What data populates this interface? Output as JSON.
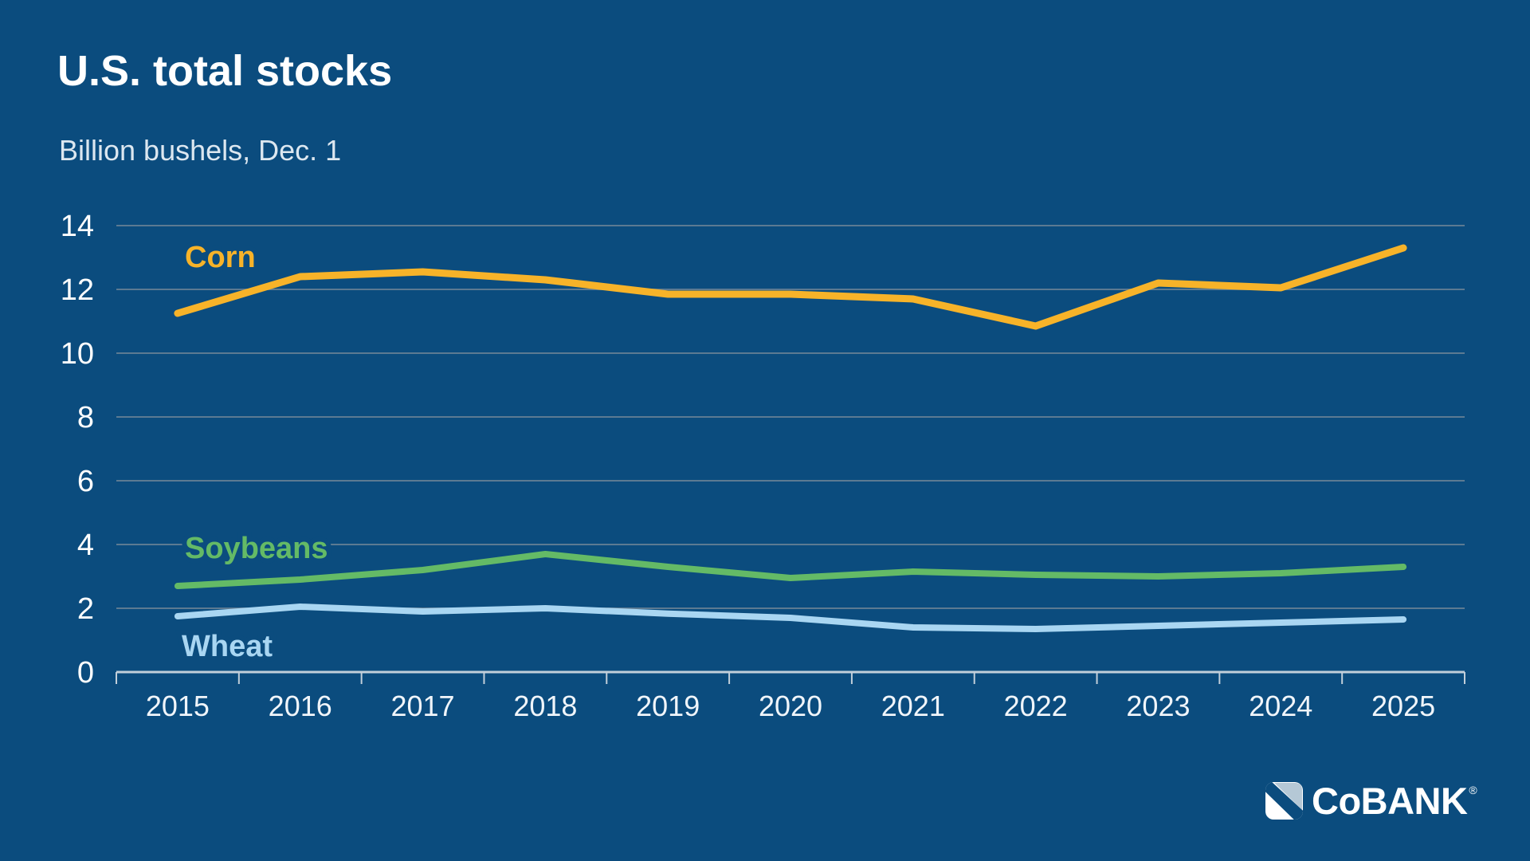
{
  "header": {
    "title": "U.S. total stocks",
    "subtitle": "Billion bushels, Dec. 1"
  },
  "chart_data": {
    "type": "line",
    "x": [
      "2015",
      "2016",
      "2017",
      "2018",
      "2019",
      "2020",
      "2021",
      "2022",
      "2023",
      "2024",
      "2025"
    ],
    "series": [
      {
        "name": "Corn",
        "color": "#F7B329",
        "values": [
          11.25,
          12.4,
          12.55,
          12.3,
          11.85,
          11.85,
          11.7,
          10.85,
          12.2,
          12.05,
          13.3
        ]
      },
      {
        "name": "Soybeans",
        "color": "#64BA66",
        "values": [
          2.7,
          2.9,
          3.2,
          3.7,
          3.3,
          2.95,
          3.15,
          3.05,
          3.0,
          3.1,
          3.3
        ]
      },
      {
        "name": "Wheat",
        "color": "#A9D6F2",
        "values": [
          1.75,
          2.05,
          1.9,
          2.0,
          1.83,
          1.7,
          1.4,
          1.35,
          1.45,
          1.55,
          1.65
        ]
      }
    ],
    "title": "U.S. total stocks",
    "subtitle": "Billion bushels, Dec. 1",
    "xlabel": "",
    "ylabel": "",
    "ylim": [
      0,
      14
    ],
    "ytick_step": 2,
    "yticks": [
      0,
      2,
      4,
      6,
      8,
      10,
      12,
      14
    ],
    "grid": "horizontal",
    "legend": "inline-labels-on-lines"
  },
  "branding": {
    "logo_text": "CoBANK",
    "registered_mark": "®"
  },
  "colors": {
    "background": "#0B4C7E",
    "grid": "#5C7A92",
    "axis": "#C2CFDA",
    "y_tick_label": "#FFFFFF",
    "x_tick_label": "#F0F5FA",
    "title": "#FFFFFF",
    "subtitle": "#DCE7F0",
    "logo_light": "#B5C8D6",
    "logo_white": "#FFFFFF"
  }
}
